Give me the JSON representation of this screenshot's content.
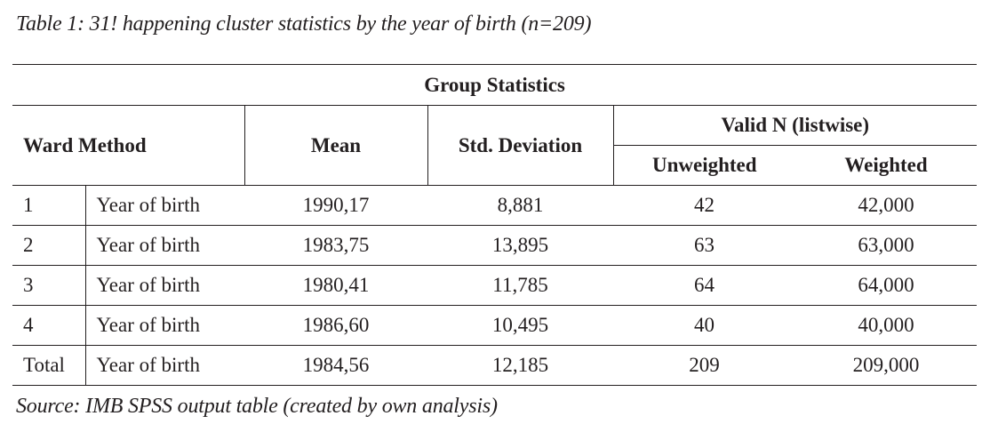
{
  "caption": "Table 1: 31! happening cluster statistics by the year of birth (n=209)",
  "table": {
    "title": "Group Statistics",
    "headers": {
      "ward_method": "Ward Method",
      "mean": "Mean",
      "std_deviation": "Std. Deviation",
      "valid_n": "Valid N (listwise)",
      "unweighted": "Unweighted",
      "weighted": "Weighted"
    },
    "rows": [
      {
        "cluster": "1",
        "variable": "Year of birth",
        "mean": "1990,17",
        "std": "8,881",
        "unweighted": "42",
        "weighted": "42,000"
      },
      {
        "cluster": "2",
        "variable": "Year of birth",
        "mean": "1983,75",
        "std": "13,895",
        "unweighted": "63",
        "weighted": "63,000"
      },
      {
        "cluster": "3",
        "variable": "Year of birth",
        "mean": "1980,41",
        "std": "11,785",
        "unweighted": "64",
        "weighted": "64,000"
      },
      {
        "cluster": "4",
        "variable": "Year of birth",
        "mean": "1986,60",
        "std": "10,495",
        "unweighted": "40",
        "weighted": "40,000"
      },
      {
        "cluster": "Total",
        "variable": "Year of birth",
        "mean": "1984,56",
        "std": "12,185",
        "unweighted": "209",
        "weighted": "209,000"
      }
    ]
  },
  "source": "Source: IMB SPSS output table (created by own analysis)"
}
